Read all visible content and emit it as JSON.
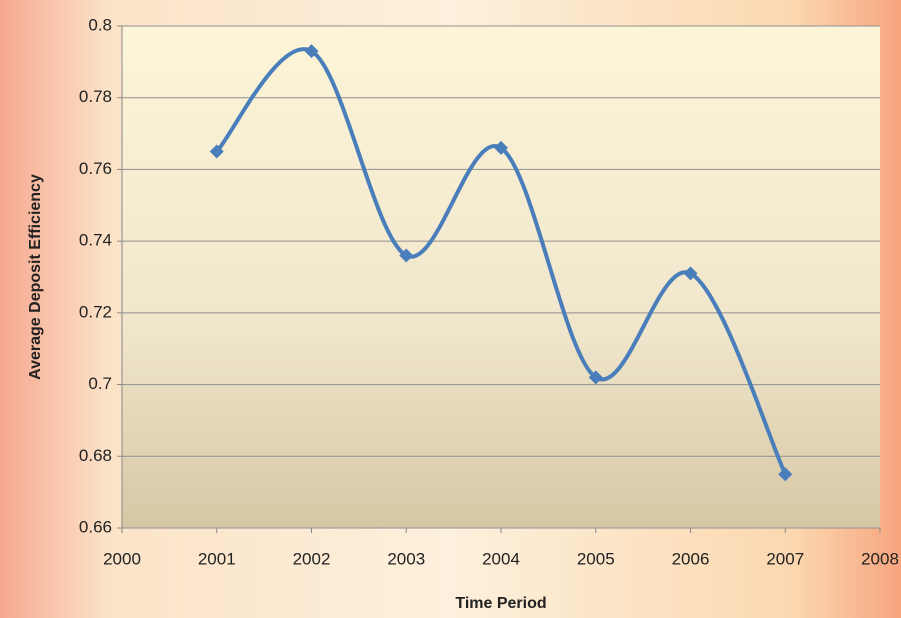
{
  "chart_data": {
    "type": "line",
    "smooth": true,
    "marker": "diamond",
    "x_label": "Time Period",
    "y_label": "Average Deposit Efficiency",
    "x": [
      2001,
      2002,
      2003,
      2004,
      2005,
      2006,
      2007
    ],
    "values": [
      0.765,
      0.793,
      0.736,
      0.766,
      0.702,
      0.731,
      0.675
    ],
    "color": "#4a7ebb",
    "xlim": [
      2000,
      2008
    ],
    "xticks": [
      2000,
      2001,
      2002,
      2003,
      2004,
      2005,
      2006,
      2007,
      2008
    ],
    "ylim": [
      0.66,
      0.8
    ],
    "yticks": [
      0.66,
      0.68,
      0.7,
      0.72,
      0.74,
      0.76,
      0.78,
      0.8
    ],
    "grid": true
  }
}
